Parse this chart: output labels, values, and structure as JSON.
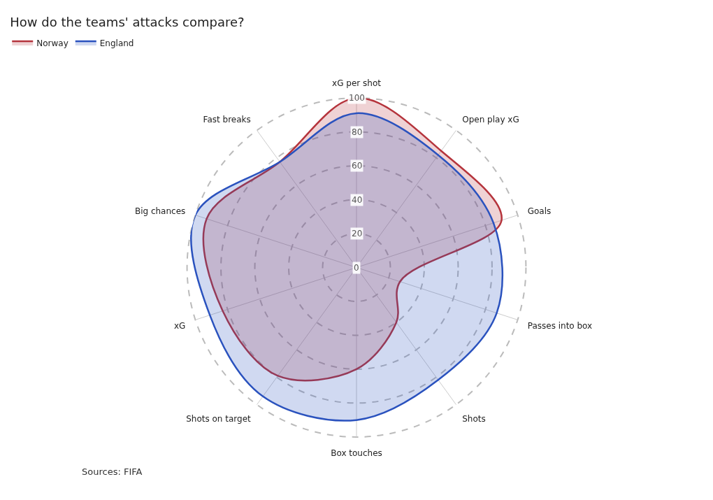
{
  "chart_data": {
    "type": "radar",
    "title": "How do the teams' attacks compare?",
    "categories": [
      "xG per shot",
      "Open play xG",
      "Goals",
      "Passes into box",
      "Shots",
      "Box touches",
      "Shots on target",
      "xG",
      "Big chances",
      "Fast breaks"
    ],
    "series": [
      {
        "name": "Norway",
        "color": "#b5343c",
        "values": [
          100,
          85,
          90,
          27,
          40,
          60,
          79,
          83,
          93,
          77
        ]
      },
      {
        "name": "England",
        "color": "#2a52be",
        "values": [
          91,
          82,
          85,
          87,
          82,
          90,
          94,
          91,
          100,
          77
        ]
      }
    ],
    "ylim": [
      0,
      100
    ],
    "yticks": [
      0,
      20,
      40,
      60,
      80,
      100
    ],
    "grid": true,
    "legend": "top left",
    "line_style": "solid",
    "annotations": [
      "Sources: FIFA"
    ]
  }
}
